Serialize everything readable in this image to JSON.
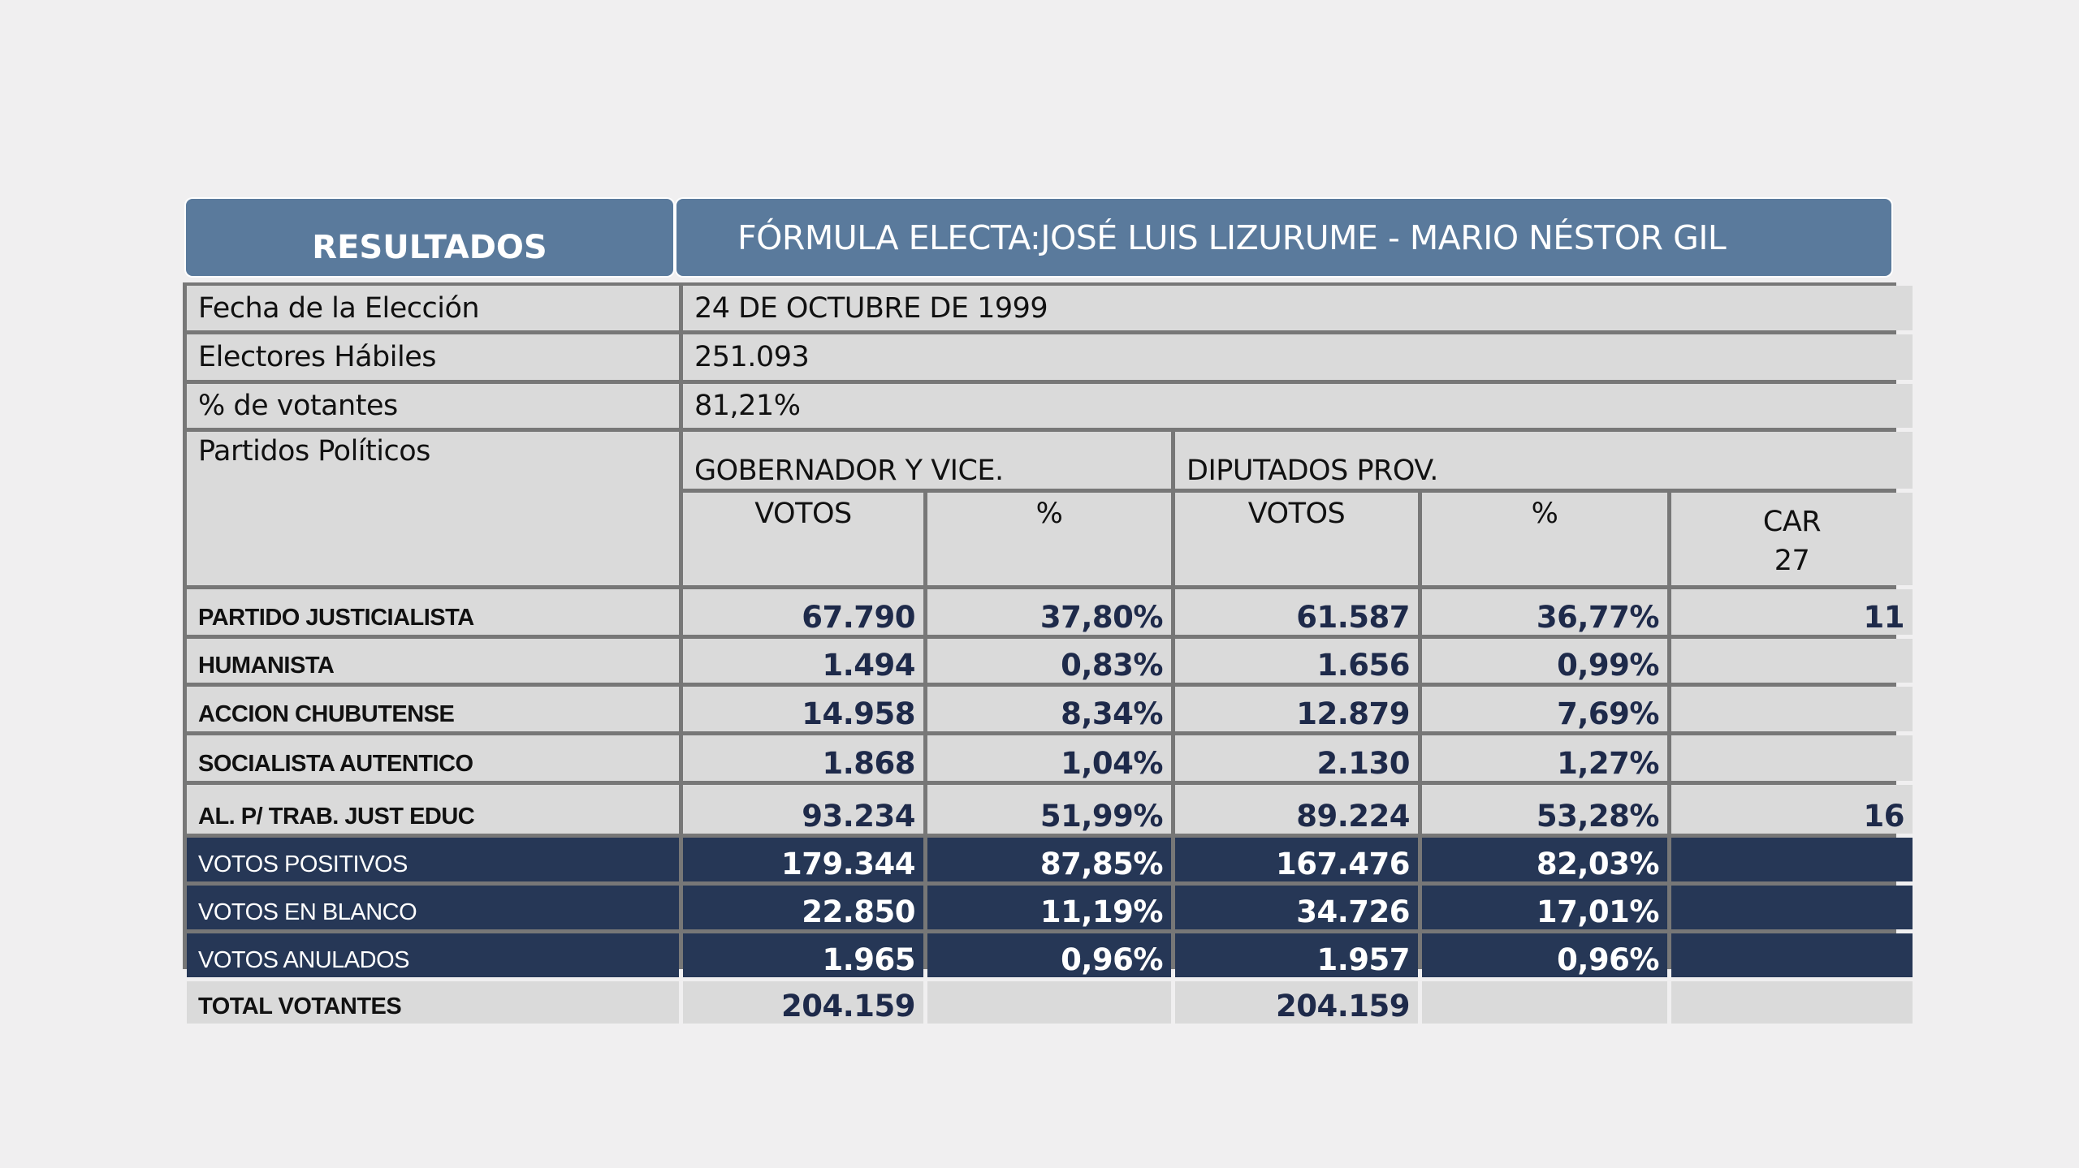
{
  "header": {
    "left_title": "RESULTADOS",
    "right_title": "FÓRMULA ELECTA:JOSÉ LUIS LIZURUME - MARIO NÉSTOR GIL"
  },
  "info": [
    {
      "label": "Fecha de la Elección",
      "value": "24 DE OCTUBRE DE 1999"
    },
    {
      "label": "Electores Hábiles",
      "value": "251.093"
    },
    {
      "label": "% de votantes",
      "value": "81,21%"
    }
  ],
  "table_head": {
    "parties_label": "Partidos Políticos",
    "group_gov": "GOBERNADOR Y VICE.",
    "group_dip": "DIPUTADOS PROV.",
    "votes": "VOTOS",
    "pct": "%",
    "car": "CAR",
    "car_total": "27"
  },
  "colors": {
    "header": "#5a7a9c",
    "dark_row": "#263756",
    "cell": "#dadada",
    "number": "#1e2a4a"
  },
  "rows": [
    {
      "name": "PARTIDO JUSTICIALISTA",
      "gov_votes": "67.790",
      "gov_pct": "37,80%",
      "dip_votes": "61.587",
      "dip_pct": "36,77%",
      "car": "11",
      "dark": false
    },
    {
      "name": "HUMANISTA",
      "gov_votes": "1.494",
      "gov_pct": "0,83%",
      "dip_votes": "1.656",
      "dip_pct": "0,99%",
      "car": "",
      "dark": false
    },
    {
      "name": "ACCION CHUBUTENSE",
      "gov_votes": "14.958",
      "gov_pct": "8,34%",
      "dip_votes": "12.879",
      "dip_pct": "7,69%",
      "car": "",
      "dark": false
    },
    {
      "name": "SOCIALISTA AUTENTICO",
      "gov_votes": "1.868",
      "gov_pct": "1,04%",
      "dip_votes": "2.130",
      "dip_pct": "1,27%",
      "car": "",
      "dark": false
    },
    {
      "name": "AL. P/ TRAB. JUST EDUC",
      "gov_votes": "93.234",
      "gov_pct": "51,99%",
      "dip_votes": "89.224",
      "dip_pct": "53,28%",
      "car": "16",
      "dark": false
    },
    {
      "name": "VOTOS POSITIVOS",
      "gov_votes": "179.344",
      "gov_pct": "87,85%",
      "dip_votes": "167.476",
      "dip_pct": "82,03%",
      "car": "",
      "dark": true
    },
    {
      "name": "VOTOS EN BLANCO",
      "gov_votes": "22.850",
      "gov_pct": "11,19%",
      "dip_votes": "34.726",
      "dip_pct": "17,01%",
      "car": "",
      "dark": true
    },
    {
      "name": "VOTOS ANULADOS",
      "gov_votes": "1.965",
      "gov_pct": "0,96%",
      "dip_votes": "1.957",
      "dip_pct": "0,96%",
      "car": "",
      "dark": true
    },
    {
      "name": "TOTAL VOTANTES",
      "gov_votes": "204.159",
      "gov_pct": "",
      "dip_votes": "204.159",
      "dip_pct": "",
      "car": "",
      "dark": false
    }
  ]
}
